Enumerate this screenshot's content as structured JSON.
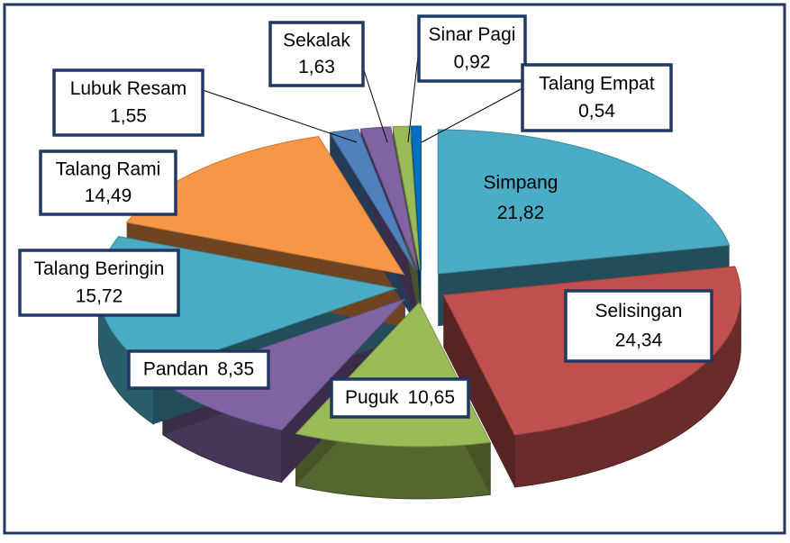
{
  "chart_data": {
    "type": "pie3d",
    "categories": [
      "Simpang",
      "Selisingan",
      "Puguk",
      "Pandan",
      "Talang Beringin",
      "Talang Rami",
      "Lubuk Resam",
      "Sekalak",
      "Sinar Pagi",
      "Talang Empat"
    ],
    "values": [
      21.82,
      24.34,
      10.65,
      8.35,
      15.72,
      14.49,
      1.55,
      1.63,
      0.92,
      0.54
    ],
    "value_labels": [
      "21,82",
      "24,34",
      "10,65",
      "8,35",
      "15,72",
      "14,49",
      "1,55",
      "1,63",
      "0,92",
      "0,54"
    ],
    "colors": [
      "#4bacc6",
      "#c0504d",
      "#9bbb59",
      "#8064a2",
      "#4bacc6",
      "#f79646",
      "#4f81bd",
      "#8064a2",
      "#9bbb59",
      "#0070c0"
    ]
  }
}
